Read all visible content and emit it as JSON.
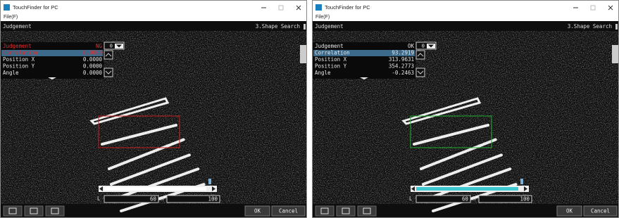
{
  "windows": [
    {
      "title": "TouchFinder for PC",
      "menu": "File(F)",
      "header_left": "Judgement",
      "header_right": "3.Shape Search",
      "selector": "0",
      "rows": [
        {
          "label": "Judgement",
          "value": "NG",
          "color": "#e03030"
        },
        {
          "label": "Correlation",
          "value": "0.0000",
          "color": "#e03030"
        },
        {
          "label": "Position X",
          "value": "0.0000",
          "color": "#e8e8e8"
        },
        {
          "label": "Position Y",
          "value": "0.0000",
          "color": "#e8e8e8"
        },
        {
          "label": "Angle",
          "value": "0.0000",
          "color": "#e8e8e8"
        }
      ],
      "box_color": "#c82020",
      "slider_color": "#ffffff",
      "slider": {
        "l_label": "L",
        "l_value": "60",
        "h_label": "H",
        "h_value": "100"
      },
      "buttons": [
        "OK",
        "Cancel"
      ]
    },
    {
      "title": "TouchFinder for PC",
      "menu": "File(F)",
      "header_left": "Judgement",
      "header_right": "3.Shape Search",
      "selector": "0",
      "rows": [
        {
          "label": "Judgement",
          "value": "OK",
          "color": "#e8e8e8"
        },
        {
          "label": "Correlation",
          "value": "93.2919",
          "color": "#e8e8e8"
        },
        {
          "label": "Position X",
          "value": "313.9631",
          "color": "#e8e8e8"
        },
        {
          "label": "Position Y",
          "value": "354.2773",
          "color": "#e8e8e8"
        },
        {
          "label": "Angle",
          "value": "-0.2463",
          "color": "#e8e8e8"
        }
      ],
      "box_color": "#20b030",
      "slider_color": "#40c8d0",
      "slider": {
        "l_label": "L",
        "l_value": "60",
        "h_label": "H",
        "h_value": "100"
      },
      "buttons": [
        "OK",
        "Cancel"
      ]
    }
  ]
}
